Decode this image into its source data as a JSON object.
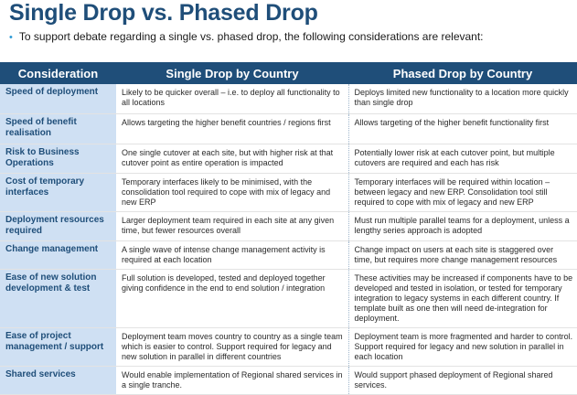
{
  "title": "Single Drop vs. Phased Drop",
  "intro": "To support debate regarding a single vs. phased drop, the following considerations are relevant:",
  "headers": [
    "Consideration",
    "Single Drop by Country",
    "Phased Drop by Country"
  ],
  "rows": [
    {
      "consideration": "Speed of deployment",
      "single": "Likely to be quicker overall – i.e. to deploy all functionality to all locations",
      "phased": "Deploys limited new functionality to a location more quickly than single drop"
    },
    {
      "consideration": "Speed of benefit realisation",
      "single": "Allows targeting the higher benefit countries / regions first",
      "phased": "Allows targeting of the higher benefit functionality first"
    },
    {
      "consideration": "Risk to Business Operations",
      "single": "One single cutover at each  site, but with higher risk at that cutover point as entire operation is impacted",
      "phased": "Potentially lower risk at each cutover point, but multiple cutovers are required and each has risk"
    },
    {
      "consideration": "Cost of temporary interfaces",
      "single": "Temporary interfaces likely to be minimised, with the consolidation tool required to cope with mix of legacy and new ERP",
      "phased": "Temporary interfaces will be required within location – between legacy and new ERP.  Consolidation tool still required to cope with mix of legacy and new ERP"
    },
    {
      "consideration": "Deployment resources required",
      "single": "Larger deployment team required in each site at any given time, but fewer resources overall",
      "phased": "Must run multiple parallel teams for a deployment, unless a lengthy series approach is adopted"
    },
    {
      "consideration": "Change management",
      "single": "A single wave of intense change management activity is required at each location",
      "phased": "Change impact on users at each site is staggered over time, but requires more change management resources"
    },
    {
      "consideration": "Ease of new solution development & test",
      "single": "Full solution is developed, tested and deployed together giving confidence in the end to end solution / integration",
      "phased": "These activities may be increased if components have to be developed and tested in isolation, or tested for temporary integration to legacy systems in each different country. If template built as one then will need de-integration for deployment."
    },
    {
      "consideration": "Ease of project management / support",
      "single": "Deployment team moves country to country as a single team which is easier to control.  Support required for legacy and new solution in parallel in different countries",
      "phased": "Deployment team is more fragmented and harder to control.  Support required for legacy and new solution in parallel in each location"
    },
    {
      "consideration": "Shared services",
      "single": "Would enable implementation of Regional shared services in a single tranche.",
      "phased": "Would support phased deployment of Regional shared services."
    }
  ]
}
